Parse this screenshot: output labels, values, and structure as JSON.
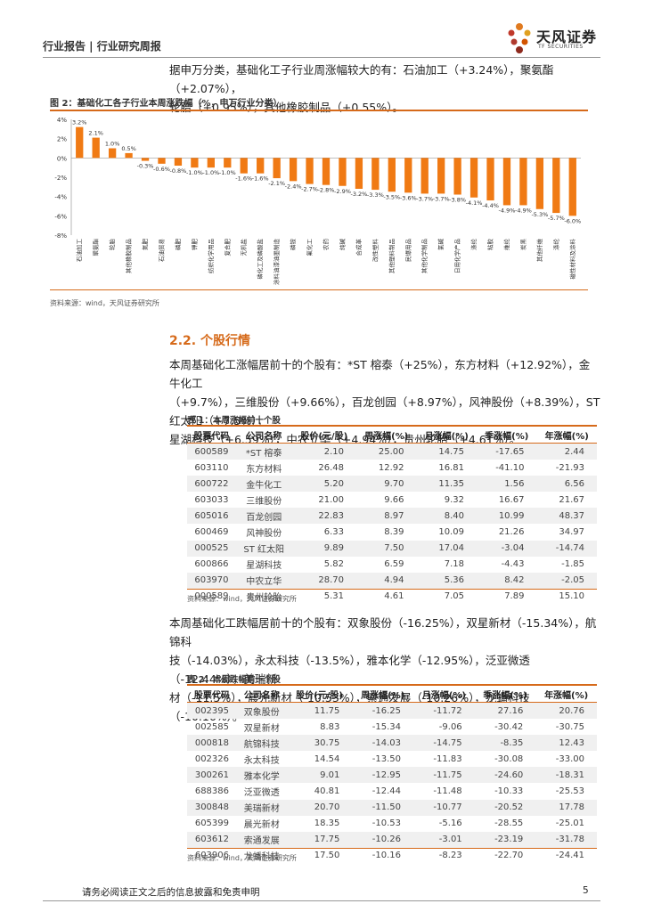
{
  "header": {
    "title": "行业报告 | 行业研究周报",
    "logo_text": "天风证券",
    "logo_sub": "TF SECURITIES"
  },
  "intro": {
    "line1": "据申万分类，基础化工子行业周涨幅较大的有：石油加工（+3.24%），聚氨酯（+2.07%），",
    "line2": "轮胎（+0.95%），其他橡胶制品（+0.55%）。"
  },
  "figure": {
    "title": "图 2：基础化工各子行业本周涨跌幅（%，申万行业分类）",
    "source": "资料来源：wind，天风证券研究所"
  },
  "chart_data": {
    "type": "bar",
    "ylim": [
      -8,
      4
    ],
    "yticks": [
      "4%",
      "2%",
      "0%",
      "-2%",
      "-4%",
      "-6%",
      "-8%"
    ],
    "categories": [
      "石油加工",
      "聚氨酯",
      "轮胎",
      "其他橡胶制品",
      "氮肥",
      "石油贸易",
      "磷肥",
      "钾肥",
      "纺织化学用品",
      "复合肥",
      "无机盐",
      "磷化工及磷酸盐",
      "涂料油漆油墨制造",
      "磷铵",
      "氟化工",
      "农药",
      "纯碱",
      "合成革",
      "改性塑料",
      "其他塑料制品",
      "民爆用品",
      "其他化学制品",
      "氯碱",
      "日用化学产品",
      "涤纶",
      "粘胶",
      "维纶",
      "炭黑",
      "其他纤维",
      "涤纶2",
      "磁性材料"
    ],
    "values": [
      3.2,
      2.1,
      1.0,
      0.5,
      -0.3,
      -0.6,
      -0.8,
      -1.0,
      -1.0,
      -1.0,
      -1.6,
      -1.6,
      -2.1,
      -2.4,
      -2.7,
      -2.8,
      -2.9,
      -3.2,
      -3.3,
      -3.5,
      -3.6,
      -3.7,
      -3.7,
      -3.8,
      -4.1,
      -4.4,
      -4.9,
      -4.9,
      -5.3,
      -5.7,
      -6.0
    ],
    "labels": [
      "3.2%",
      "2.1%",
      "1.0%",
      "0.5%",
      "-0.3%",
      "-0.6%",
      "-0.8%",
      "-1.0%",
      "-1.0%",
      "-1.0%",
      "-1.6%",
      "-1.6%",
      "-2.1%",
      "-2.4%",
      "-2.7%",
      "-2.8%",
      "-2.9%",
      "-3.2%",
      "-3.3%",
      "-3.5%",
      "-3.6%",
      "-3.7%",
      "-3.7%",
      "-3.8%",
      "-4.1%",
      "-4.4%",
      "-4.9%",
      "-4.9%",
      "-5.3%",
      "-5.7%",
      "-6.0%"
    ],
    "display_categories": [
      "石油加工",
      "聚氨酯",
      "轮胎",
      "其他橡胶制品",
      "氮肥",
      "石油贸易",
      "磷肥",
      "钾肥",
      "纺织化学用品",
      "复合肥",
      "无机盐",
      "磷化工及磷酸盐",
      "涂料油漆油墨制造",
      "磷铵",
      "氟化工",
      "农药",
      "纯碱",
      "合成革",
      "改性塑料",
      "其他塑料制品",
      "民爆用品",
      "其他化学制品",
      "氯碱",
      "日用化学产品",
      "涤纶",
      "粘胶",
      "维纶",
      "炭黑",
      "其他纤维",
      "涤纶",
      "磁性材料及涂料"
    ],
    "bar_color": "#f07a14",
    "grid": false
  },
  "section": {
    "title": "2.2. 个股行情",
    "para1_line1": "本周基础化工涨幅居前十的个股有：*ST 榕泰（+25%），东方材料（+12.92%），金牛化工",
    "para1_line2": "（+9.7%），三维股份（+9.66%），百龙创园（+8.97%），风神股份（+8.39%），ST 红太阳（+7.5%），",
    "para1_line3": "星湖科技（+6.59%），中农立华（+4.94%），贵州轮胎（+4.61%）。"
  },
  "table1": {
    "title": "表 1：本周涨幅前十个股",
    "headers": [
      "股票代码",
      "公司名称",
      "股价(元/股)",
      "周涨幅(%)",
      "月涨幅(%)",
      "季涨幅(%)",
      "年涨幅(%)"
    ],
    "rows": [
      [
        "600589",
        "*ST 榕泰",
        "2.10",
        "25.00",
        "14.75",
        "-17.65",
        "2.44"
      ],
      [
        "603110",
        "东方材料",
        "26.48",
        "12.92",
        "16.81",
        "-41.10",
        "-21.93"
      ],
      [
        "600722",
        "金牛化工",
        "5.20",
        "9.70",
        "11.35",
        "1.56",
        "6.56"
      ],
      [
        "603033",
        "三维股份",
        "21.00",
        "9.66",
        "9.32",
        "16.67",
        "21.67"
      ],
      [
        "605016",
        "百龙创园",
        "22.83",
        "8.97",
        "8.40",
        "10.99",
        "48.37"
      ],
      [
        "600469",
        "风神股份",
        "6.33",
        "8.39",
        "10.09",
        "21.26",
        "34.97"
      ],
      [
        "000525",
        "ST 红太阳",
        "9.89",
        "7.50",
        "17.04",
        "-3.04",
        "-14.74"
      ],
      [
        "600866",
        "星湖科技",
        "5.82",
        "6.59",
        "7.18",
        "-4.43",
        "-1.85"
      ],
      [
        "603970",
        "中农立华",
        "28.70",
        "4.94",
        "5.36",
        "8.42",
        "-2.05"
      ],
      [
        "000589",
        "贵州轮胎",
        "5.31",
        "4.61",
        "7.05",
        "7.89",
        "15.10"
      ]
    ],
    "source": "资料来源：wind，天风证券研究所"
  },
  "para2": {
    "line1": "本周基础化工跌幅居前十的个股有：双象股份（-16.25%），双星新材（-15.34%），航锦科",
    "line2": "技（-14.03%），永太科技（-13.5%），雅本化学（-12.95%），泛亚微透（-12.44%），美瑞新",
    "line3": "材（-11.5%），晨光新材（-10.53%），索通发展（-10.26%），龙蟠科技（-10.16%）。"
  },
  "table2": {
    "title": "表 2：本周跌幅前十个股",
    "headers": [
      "股票代码",
      "公司名称",
      "股价(元/股)",
      "周涨幅(%)",
      "月涨幅(%)",
      "季涨幅(%)",
      "年涨幅(%)"
    ],
    "rows": [
      [
        "002395",
        "双象股份",
        "11.75",
        "-16.25",
        "-11.72",
        "27.16",
        "20.76"
      ],
      [
        "002585",
        "双星新材",
        "8.83",
        "-15.34",
        "-9.06",
        "-30.42",
        "-30.75"
      ],
      [
        "000818",
        "航锦科技",
        "30.75",
        "-14.03",
        "-14.75",
        "-8.35",
        "12.43"
      ],
      [
        "002326",
        "永太科技",
        "14.54",
        "-13.50",
        "-11.83",
        "-30.08",
        "-33.00"
      ],
      [
        "300261",
        "雅本化学",
        "9.01",
        "-12.95",
        "-11.75",
        "-24.60",
        "-18.31"
      ],
      [
        "688386",
        "泛亚微透",
        "40.81",
        "-12.44",
        "-11.48",
        "-10.33",
        "-25.53"
      ],
      [
        "300848",
        "美瑞新材",
        "20.70",
        "-11.50",
        "-10.77",
        "-20.52",
        "17.78"
      ],
      [
        "605399",
        "晨光新材",
        "18.35",
        "-10.53",
        "-5.16",
        "-28.55",
        "-25.01"
      ],
      [
        "603612",
        "索通发展",
        "17.75",
        "-10.26",
        "-3.01",
        "-23.19",
        "-31.78"
      ],
      [
        "603906",
        "龙蟠科技",
        "17.50",
        "-10.16",
        "-8.23",
        "-22.70",
        "-24.41"
      ]
    ],
    "source": "资料来源：wind，天风证券研究所"
  },
  "footer": {
    "disclaimer": "请务必阅读正文之后的信息披露和免责申明",
    "page": "5"
  }
}
